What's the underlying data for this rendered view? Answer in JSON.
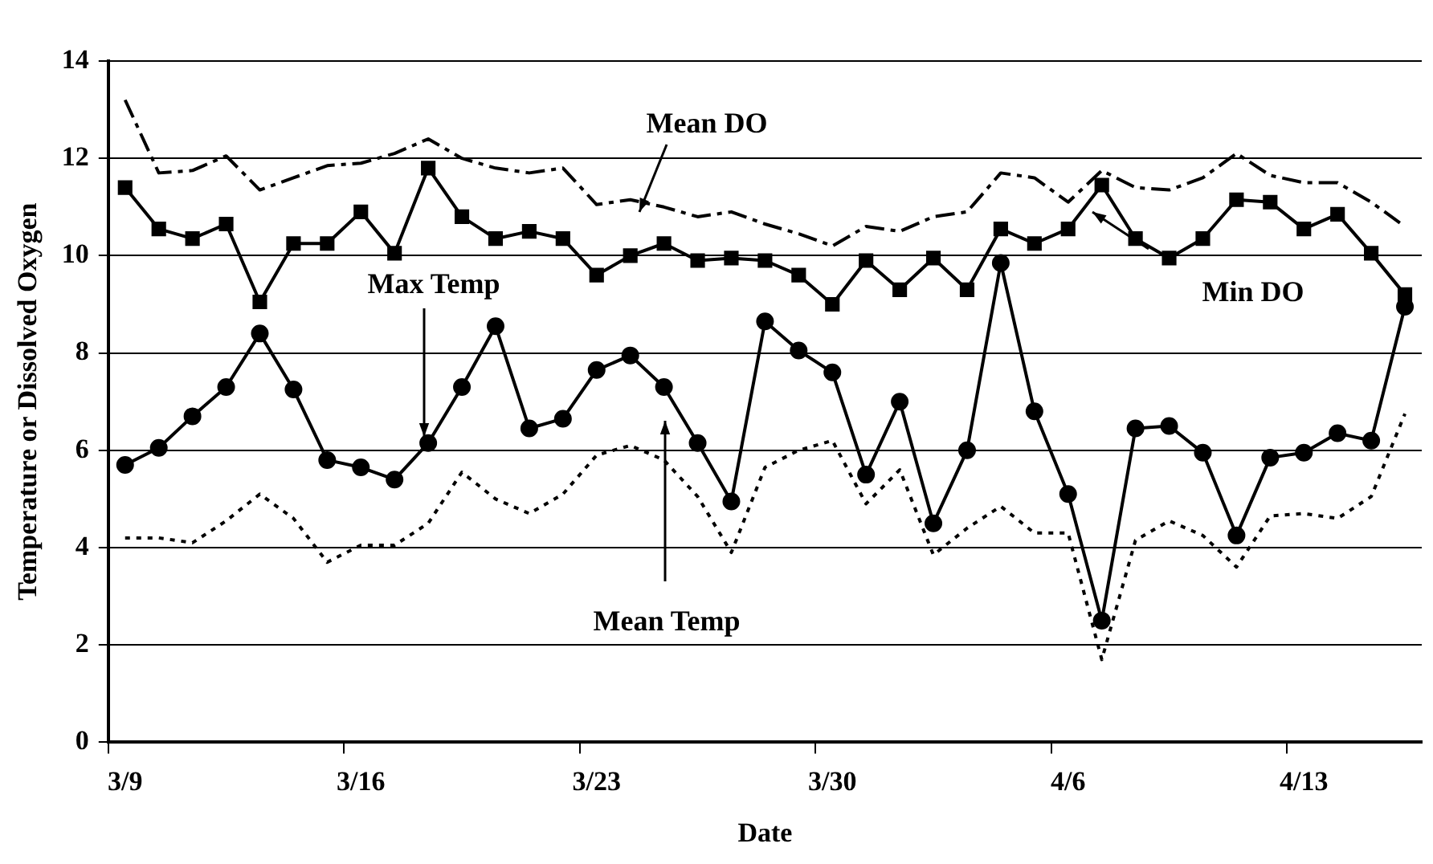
{
  "chart_data": {
    "type": "line",
    "xlabel": "Date",
    "ylabel": "Temperature or Dissolved Oxygen",
    "categories": [
      "3/9",
      null,
      null,
      null,
      null,
      null,
      null,
      "3/16",
      null,
      null,
      null,
      null,
      null,
      null,
      "3/23",
      null,
      null,
      null,
      null,
      null,
      null,
      "3/30",
      null,
      null,
      null,
      null,
      null,
      null,
      "4/6",
      null,
      null,
      null,
      null,
      null,
      null,
      "4/13",
      null,
      null,
      null
    ],
    "series": [
      {
        "name": "Mean DO",
        "color": "#000000",
        "line_style": "dashed",
        "marker": "none",
        "values": [
          13.2,
          11.7,
          11.75,
          12.05,
          11.35,
          11.6,
          11.85,
          11.9,
          12.1,
          12.4,
          12.0,
          11.8,
          11.7,
          11.8,
          11.05,
          11.15,
          11.0,
          10.8,
          10.9,
          10.65,
          10.45,
          10.2,
          10.6,
          10.5,
          10.8,
          10.9,
          11.7,
          11.6,
          11.1,
          11.75,
          11.4,
          11.35,
          11.6,
          12.1,
          11.65,
          11.5,
          11.5,
          11.1,
          10.6
        ]
      },
      {
        "name": "Min DO",
        "color": "#000000",
        "line_style": "solid",
        "marker": "square",
        "values": [
          11.4,
          10.55,
          10.35,
          10.65,
          9.05,
          10.25,
          10.25,
          10.9,
          10.05,
          11.8,
          10.8,
          10.35,
          10.5,
          10.35,
          9.6,
          10.0,
          10.25,
          9.9,
          9.95,
          9.9,
          9.6,
          9.0,
          9.9,
          9.3,
          9.95,
          9.3,
          10.55,
          10.25,
          10.55,
          11.45,
          10.35,
          9.95,
          10.35,
          11.15,
          11.1,
          10.55,
          10.85,
          10.05,
          9.2
        ]
      },
      {
        "name": "Max Temp",
        "color": "#000000",
        "line_style": "solid",
        "marker": "circle",
        "values": [
          5.7,
          6.05,
          6.7,
          7.3,
          8.4,
          7.25,
          5.8,
          5.65,
          5.4,
          6.15,
          7.3,
          8.55,
          6.45,
          6.65,
          7.65,
          7.95,
          7.3,
          6.15,
          4.95,
          8.65,
          8.05,
          7.6,
          5.5,
          7.0,
          4.5,
          6.0,
          9.85,
          6.8,
          5.1,
          2.5,
          6.45,
          6.5,
          5.95,
          4.25,
          5.85,
          5.95,
          6.35,
          6.2,
          8.95
        ]
      },
      {
        "name": "Mean Temp",
        "color": "#000000",
        "line_style": "dotted",
        "marker": "none",
        "values": [
          4.2,
          4.2,
          4.1,
          4.55,
          5.1,
          4.6,
          3.7,
          4.05,
          4.05,
          4.5,
          5.55,
          5.0,
          4.7,
          5.1,
          5.9,
          6.1,
          5.8,
          5.05,
          3.9,
          5.65,
          6.0,
          6.2,
          4.9,
          5.6,
          3.85,
          4.4,
          4.85,
          4.3,
          4.3,
          1.7,
          4.15,
          4.55,
          4.25,
          3.6,
          4.65,
          4.7,
          4.6,
          5.05,
          6.75
        ]
      }
    ],
    "ylim": [
      0,
      14
    ],
    "yticks": [
      0,
      2,
      4,
      6,
      8,
      10,
      12,
      14
    ],
    "grid": "y",
    "legend": false
  }
}
